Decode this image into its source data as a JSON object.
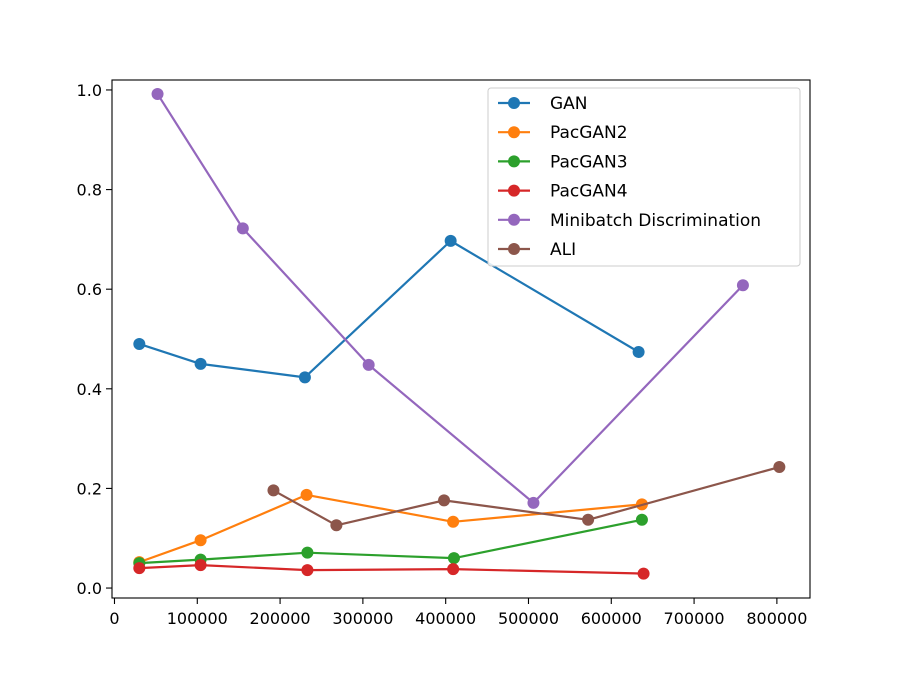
{
  "chart_data": {
    "type": "line",
    "title": "",
    "xlabel": "",
    "ylabel": "",
    "xlim": [
      -3000,
      840000
    ],
    "ylim": [
      -0.02,
      1.02
    ],
    "xticks": [
      0,
      100000,
      200000,
      300000,
      400000,
      500000,
      600000,
      700000,
      800000
    ],
    "xtick_labels": [
      "0",
      "100000",
      "200000",
      "300000",
      "400000",
      "500000",
      "600000",
      "700000",
      "800000"
    ],
    "yticks": [
      0.0,
      0.2,
      0.4,
      0.6,
      0.8,
      1.0
    ],
    "ytick_labels": [
      "0.0",
      "0.2",
      "0.4",
      "0.6",
      "0.8",
      "1.0"
    ],
    "grid": false,
    "legend_position": "top-right",
    "series": [
      {
        "name": "GAN",
        "color": "#1f77b4",
        "x": [
          30000,
          104000,
          230000,
          406000,
          633000
        ],
        "y": [
          0.49,
          0.45,
          0.423,
          0.697,
          0.474
        ]
      },
      {
        "name": "PacGAN2",
        "color": "#ff7f0e",
        "x": [
          30000,
          104000,
          232000,
          409000,
          637000
        ],
        "y": [
          0.052,
          0.096,
          0.187,
          0.133,
          0.168
        ]
      },
      {
        "name": "PacGAN3",
        "color": "#2ca02c",
        "x": [
          30000,
          104000,
          233000,
          410000,
          637000
        ],
        "y": [
          0.05,
          0.057,
          0.071,
          0.06,
          0.137
        ]
      },
      {
        "name": "PacGAN4",
        "color": "#d62728",
        "x": [
          30000,
          104000,
          233000,
          409000,
          639000
        ],
        "y": [
          0.04,
          0.046,
          0.036,
          0.038,
          0.029
        ]
      },
      {
        "name": "Minibatch Discrimination",
        "color": "#9467bd",
        "x": [
          52000,
          155000,
          307000,
          506000,
          759000
        ],
        "y": [
          0.992,
          0.722,
          0.448,
          0.171,
          0.608
        ]
      },
      {
        "name": "ALI",
        "color": "#8c564b",
        "x": [
          192000,
          268000,
          398000,
          572000,
          803000
        ],
        "y": [
          0.196,
          0.126,
          0.176,
          0.137,
          0.243
        ]
      }
    ]
  }
}
